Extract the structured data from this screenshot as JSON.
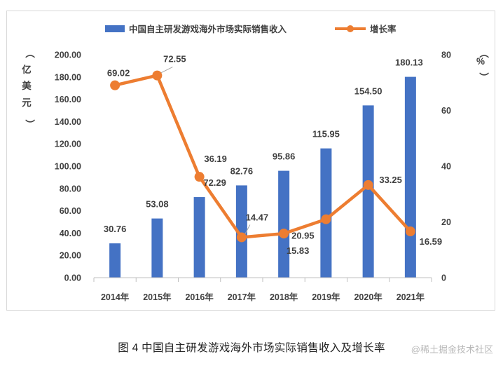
{
  "caption": "图 4 中国自主研发游戏海外市场实际销售收入及增长率",
  "watermark": "@稀土掘金技术社区",
  "colors": {
    "bar": "#4472c4",
    "line": "#ed7d31",
    "axis": "#bfbfbf",
    "text": "#404040"
  },
  "chart_data": {
    "type": "bar+line",
    "title": "",
    "categories": [
      "2014年",
      "2015年",
      "2016年",
      "2017年",
      "2018年",
      "2019年",
      "2020年",
      "2021年"
    ],
    "series": [
      {
        "name": "中国自主研发游戏海外市场实际销售收入",
        "type": "bar",
        "axis": "left",
        "values": [
          30.76,
          53.08,
          72.29,
          82.76,
          95.86,
          115.95,
          154.5,
          180.13
        ],
        "labels": [
          "30.76",
          "53.08",
          "72.29",
          "82.76",
          "95.86",
          "115.95",
          "154.50",
          "180.13"
        ]
      },
      {
        "name": "增长率",
        "type": "line",
        "axis": "right",
        "values": [
          69.02,
          72.55,
          36.19,
          14.47,
          15.83,
          20.95,
          33.25,
          16.59
        ],
        "labels": [
          "69.02",
          "72.55",
          "36.19",
          "14.47",
          "15.83",
          "20.95",
          "33.25",
          "16.59"
        ]
      }
    ],
    "y_left": {
      "unit_chars": [
        "（",
        "亿",
        "美",
        "元",
        "）"
      ],
      "range": [
        0,
        200
      ],
      "ticks": [
        "0.00",
        "20.00",
        "40.00",
        "60.00",
        "80.00",
        "100.00",
        "120.00",
        "140.00",
        "160.00",
        "180.00",
        "200.00"
      ]
    },
    "y_right": {
      "unit_chars": [
        "（",
        "%",
        "）"
      ],
      "range": [
        0,
        80
      ],
      "ticks": [
        "0",
        "20",
        "40",
        "60",
        "80"
      ]
    },
    "legend": {
      "placement": "top"
    }
  }
}
